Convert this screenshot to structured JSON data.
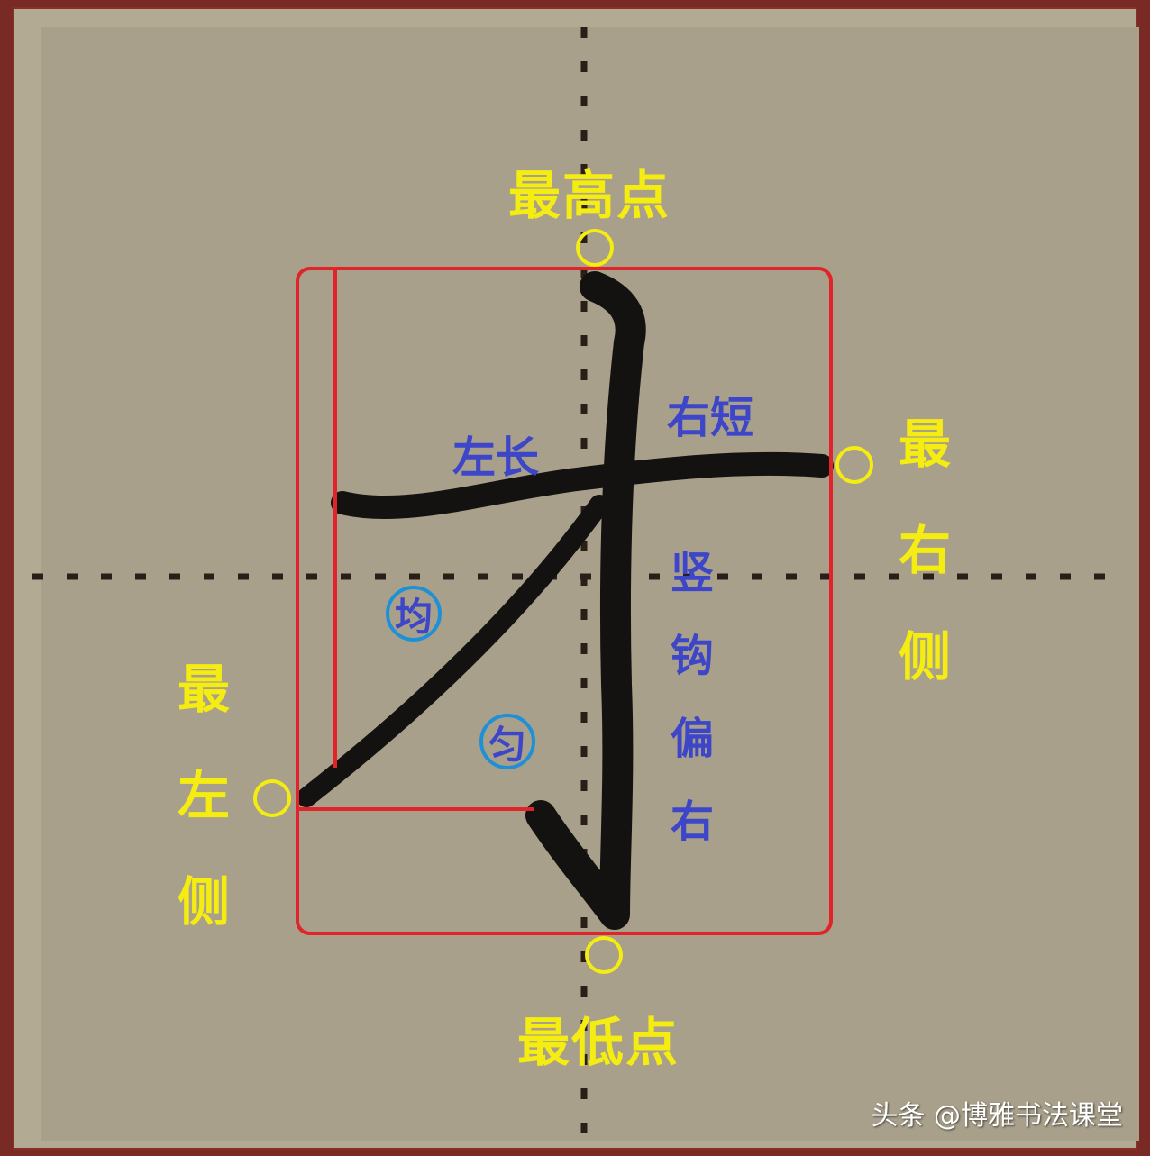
{
  "labels": {
    "highest_point": "最高点",
    "lowest_point": "最低点",
    "rightmost": "最右侧",
    "leftmost": "最左侧",
    "left_long": "左长",
    "right_short": "右短",
    "vertical_hook": "竖钩偏右",
    "even_1": "均",
    "even_2": "匀"
  },
  "watermark": "头条 @博雅书法课堂",
  "colors": {
    "border_red": "#8a2f28",
    "paper": "#b3aa94",
    "guide_dots": "#2a1e18",
    "box_red": "#e0242a",
    "marker_yellow": "#f5ec12",
    "text_blue": "#3d45c8",
    "circle_blue": "#1e90d8",
    "ink": "#141210"
  }
}
